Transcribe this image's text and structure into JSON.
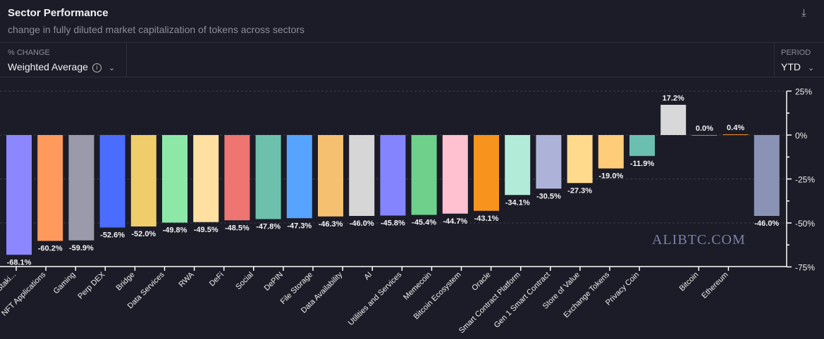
{
  "header": {
    "title": "Sector Performance",
    "subtitle": "change in fully diluted market capitalization of tokens across sectors",
    "download_icon": "download-icon"
  },
  "controls": {
    "metric": {
      "label": "% CHANGE",
      "value": "Weighted Average"
    },
    "period": {
      "label": "PERIOD",
      "value": "YTD"
    }
  },
  "watermark": "ALIBTC.COM",
  "chart_data": {
    "type": "bar",
    "ylim": [
      -75,
      25
    ],
    "y_ticks": [
      "25%",
      "0%",
      "-25%",
      "-50%",
      "-75%"
    ],
    "y_tick_values": [
      25,
      0,
      -25,
      -50,
      -75
    ],
    "grid": true,
    "categories": [
      "Staki...",
      "NFT Applications",
      "Gaming",
      "Perp DEX",
      "Bridge",
      "Data Services",
      "RWA",
      "DeFi",
      "Social",
      "DePIN",
      "File Storage",
      "Data Availability",
      "AI",
      "Utilities and Services",
      "Memecoin",
      "Bitcoin Ecosystem",
      "Oracle",
      "Smart Contract Platform",
      "Gen 1 Smart Contract",
      "Store of Value",
      "Exchange Tokens",
      "Privacy Coin",
      "",
      "Bitcoin",
      "Ethereum"
    ],
    "values": [
      -68.1,
      -60.2,
      -59.9,
      -52.6,
      -52.0,
      -49.8,
      -49.5,
      -48.5,
      -47.8,
      -47.3,
      -46.3,
      -46.0,
      -45.8,
      -45.4,
      -44.7,
      -43.1,
      -34.1,
      -30.5,
      -27.3,
      -19.0,
      -11.9,
      17.2,
      0.0,
      0.4,
      -46.0
    ],
    "labels": [
      "-68.1%",
      "-60.2%",
      "-59.9%",
      "-52.6%",
      "-52.0%",
      "-49.8%",
      "-49.5%",
      "-48.5%",
      "-47.8%",
      "-47.3%",
      "-46.3%",
      "-46.0%",
      "-45.8%",
      "-45.4%",
      "-44.7%",
      "-43.1%",
      "-34.1%",
      "-30.5%",
      "-27.3%",
      "-19.0%",
      "-11.9%",
      "17.2%",
      "0.0%",
      "0.4%",
      "-46.0%"
    ],
    "colors": [
      "#8c86ff",
      "#ff9a5c",
      "#9a9aaa",
      "#4a6cff",
      "#efcd6a",
      "#8de8a8",
      "#ffe0a0",
      "#ee7572",
      "#6dc1ac",
      "#56a4ff",
      "#f5c070",
      "#d6d6d6",
      "#8484ff",
      "#6fd08c",
      "#ffc0d0",
      "#f7941d",
      "#b2ecd8",
      "#adb3d8",
      "#ffd98c",
      "#ffcc7a",
      "#6bbfb0",
      "#d8d8d8",
      "#888888",
      "#f7941d",
      "#8a93b5"
    ]
  }
}
